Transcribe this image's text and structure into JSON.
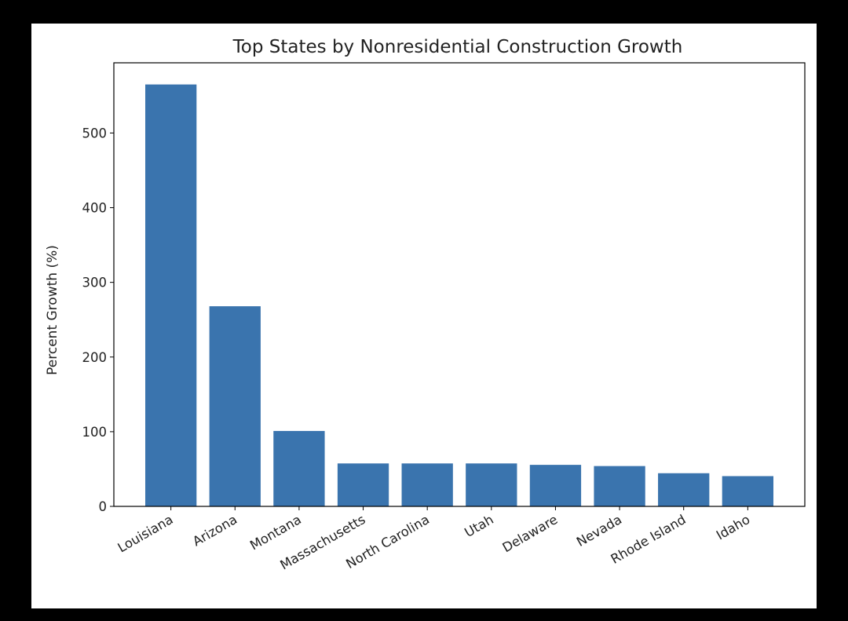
{
  "chart_data": {
    "type": "bar",
    "title": "Top States by Nonresidential Construction Growth",
    "xlabel": "",
    "ylabel": "Percent Growth (%)",
    "categories": [
      "Louisiana",
      "Arizona",
      "Montana",
      "Massachusetts",
      "North Carolina",
      "Utah",
      "Delaware",
      "Nevada",
      "Rhode Island",
      "Idaho"
    ],
    "values": [
      565,
      268,
      101,
      57.5,
      57.5,
      57.5,
      55.6,
      54,
      44.4,
      40.5
    ],
    "ylim": [
      0,
      594
    ],
    "yticks": [
      0,
      100,
      200,
      300,
      400,
      500
    ],
    "grid": false,
    "bar_color": "#3a74ae"
  }
}
